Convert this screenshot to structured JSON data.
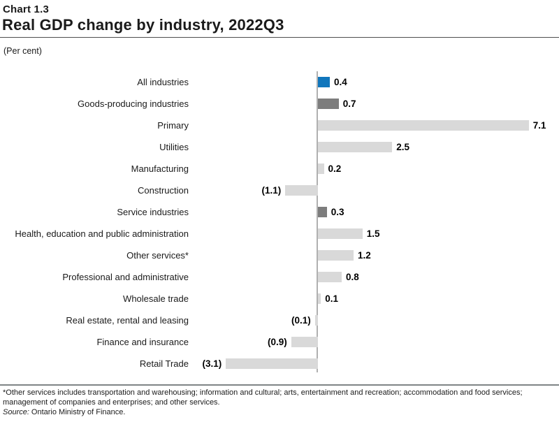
{
  "header": {
    "chart_number": "Chart 1.3",
    "title": "Real GDP change by industry, 2022Q3",
    "unit_label": "(Per cent)"
  },
  "chart_data": {
    "type": "bar",
    "orientation": "horizontal",
    "title": "Real GDP change by industry, 2022Q3",
    "unit": "Per cent",
    "baseline": 0,
    "xlim": [
      -3.5,
      7.5
    ],
    "grid": false,
    "legend": "none",
    "data_labels": "at_bar_end_negative_in_parentheses",
    "categories": [
      "All industries",
      "Goods-producing industries",
      "Primary",
      "Utilities",
      "Manufacturing",
      "Construction",
      "Service industries",
      "Health, education and public administration",
      "Other services*",
      "Professional and administrative",
      "Wholesale trade",
      "Real estate, rental and leasing",
      "Finance and insurance",
      "Retail Trade"
    ],
    "values": [
      0.4,
      0.7,
      7.1,
      2.5,
      0.2,
      -1.1,
      0.3,
      1.5,
      1.2,
      0.8,
      0.1,
      -0.1,
      -0.9,
      -3.1
    ],
    "value_labels": [
      "0.4",
      "0.7",
      "7.1",
      "2.5",
      "0.2",
      "(1.1)",
      "0.3",
      "1.5",
      "1.2",
      "0.8",
      "0.1",
      "(0.1)",
      "(0.9)",
      "(3.1)"
    ],
    "bar_roles": [
      "highlight",
      "aggregate",
      "default",
      "default",
      "default",
      "default",
      "aggregate",
      "default",
      "default",
      "default",
      "default",
      "default",
      "default",
      "default"
    ]
  },
  "colors": {
    "highlight": "#1076bc",
    "aggregate": "#7d7d7d",
    "default": "#d9d9d9",
    "axis_line": "#b0b0b0",
    "title_rule": "#4f4f4f",
    "footer_rule": "#7f8486"
  },
  "footer": {
    "footnote": "*Other services includes transportation and warehousing; information and cultural; arts, entertainment and recreation; accommodation and food services; management of companies and enterprises; and other services.",
    "source_label": "Source:",
    "source_text": "Ontario Ministry of Finance."
  }
}
